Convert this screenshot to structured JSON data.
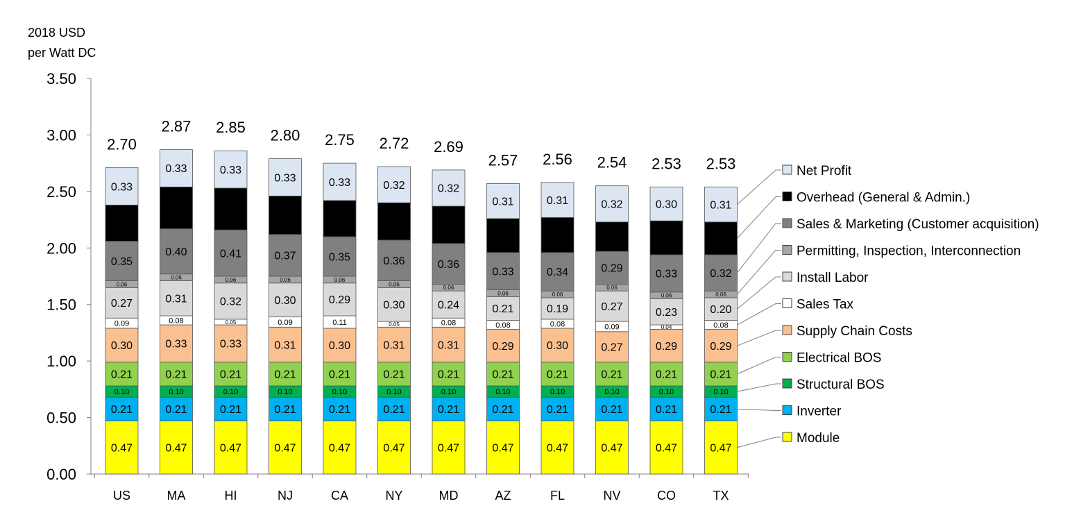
{
  "chart_data": {
    "type": "bar",
    "stacked": true,
    "ylabel_lines": [
      "2018 USD",
      "per Watt DC"
    ],
    "yticks": [
      "0.00",
      "0.50",
      "1.00",
      "1.50",
      "2.00",
      "2.50",
      "3.00",
      "3.50"
    ],
    "ylim": [
      0,
      3.5
    ],
    "grid": false,
    "legend_position": "right",
    "categories": [
      "US",
      "MA",
      "HI",
      "NJ",
      "CA",
      "NY",
      "MD",
      "AZ",
      "FL",
      "NV",
      "CO",
      "TX"
    ],
    "totals": [
      "2.70",
      "2.87",
      "2.85",
      "2.80",
      "2.75",
      "2.72",
      "2.69",
      "2.57",
      "2.56",
      "2.54",
      "2.53",
      "2.53"
    ],
    "series": [
      {
        "name": "Module",
        "color": "#ffff00",
        "label_color": "#000000",
        "values": [
          0.47,
          0.47,
          0.47,
          0.47,
          0.47,
          0.47,
          0.47,
          0.47,
          0.47,
          0.47,
          0.47,
          0.47
        ],
        "labels": [
          "0.47",
          "0.47",
          "0.47",
          "0.47",
          "0.47",
          "0.47",
          "0.47",
          "0.47",
          "0.47",
          "0.47",
          "0.47",
          "0.47"
        ]
      },
      {
        "name": "Inverter",
        "color": "#00b0f0",
        "label_color": "#000000",
        "values": [
          0.21,
          0.21,
          0.21,
          0.21,
          0.21,
          0.21,
          0.21,
          0.21,
          0.21,
          0.21,
          0.21,
          0.21
        ],
        "labels": [
          "0.21",
          "0.21",
          "0.21",
          "0.21",
          "0.21",
          "0.21",
          "0.21",
          "0.21",
          "0.21",
          "0.21",
          "0.21",
          "0.21"
        ]
      },
      {
        "name": "Structural BOS",
        "color": "#00b050",
        "label_color": "#000000",
        "values": [
          0.1,
          0.1,
          0.1,
          0.1,
          0.1,
          0.1,
          0.1,
          0.1,
          0.1,
          0.1,
          0.1,
          0.1
        ],
        "labels": [
          "0.10",
          "0.10",
          "0.10",
          "0.10",
          "0.10",
          "0.10",
          "0.10",
          "0.10",
          "0.10",
          "0.10",
          "0.10",
          "0.10"
        ]
      },
      {
        "name": "Electrical BOS",
        "color": "#92d050",
        "label_color": "#000000",
        "values": [
          0.21,
          0.21,
          0.21,
          0.21,
          0.21,
          0.21,
          0.21,
          0.21,
          0.21,
          0.21,
          0.21,
          0.21
        ],
        "labels": [
          "0.21",
          "0.21",
          "0.21",
          "0.21",
          "0.21",
          "0.21",
          "0.21",
          "0.21",
          "0.21",
          "0.21",
          "0.21",
          "0.21"
        ]
      },
      {
        "name": "Supply Chain Costs",
        "color": "#fac090",
        "label_color": "#000000",
        "values": [
          0.3,
          0.33,
          0.33,
          0.31,
          0.3,
          0.31,
          0.31,
          0.29,
          0.3,
          0.27,
          0.29,
          0.29
        ],
        "labels": [
          "0.30",
          "0.33",
          "0.33",
          "0.31",
          "0.30",
          "0.31",
          "0.31",
          "0.29",
          "0.30",
          "0.27",
          "0.29",
          "0.29"
        ]
      },
      {
        "name": "Sales Tax",
        "color": "#ffffff",
        "label_color": "#000000",
        "values": [
          0.09,
          0.08,
          0.05,
          0.09,
          0.11,
          0.05,
          0.08,
          0.08,
          0.08,
          0.09,
          0.04,
          0.08
        ],
        "labels": [
          "0.09",
          "0.08",
          "0.05",
          "0.09",
          "0.11",
          "0.05",
          "0.08",
          "0.08",
          "0.08",
          "0.09",
          "0.04",
          "0.08"
        ]
      },
      {
        "name": "Install Labor",
        "color": "#d9d9d9",
        "label_color": "#000000",
        "values": [
          0.27,
          0.31,
          0.32,
          0.3,
          0.29,
          0.3,
          0.24,
          0.21,
          0.19,
          0.27,
          0.23,
          0.2
        ],
        "labels": [
          "0.27",
          "0.31",
          "0.32",
          "0.30",
          "0.29",
          "0.30",
          "0.24",
          "0.21",
          "0.19",
          "0.27",
          "0.23",
          "0.20"
        ]
      },
      {
        "name": "Permitting, Inspection, Interconnection",
        "color": "#a6a6a6",
        "label_color": "#ffffff",
        "values": [
          0.06,
          0.06,
          0.06,
          0.06,
          0.06,
          0.06,
          0.06,
          0.06,
          0.06,
          0.06,
          0.06,
          0.06
        ],
        "labels": [
          "0.06",
          "0.06",
          "0.06",
          "0.06",
          "0.06",
          "0.06",
          "0.06",
          "0.06",
          "0.06",
          "0.06",
          "0.06",
          "0.06"
        ]
      },
      {
        "name": "Sales & Marketing (Customer acquisition)",
        "color": "#808080",
        "label_color": "#ffffff",
        "values": [
          0.35,
          0.4,
          0.41,
          0.37,
          0.35,
          0.36,
          0.36,
          0.33,
          0.34,
          0.29,
          0.33,
          0.32
        ],
        "labels": [
          "0.35",
          "0.40",
          "0.41",
          "0.37",
          "0.35",
          "0.36",
          "0.36",
          "0.33",
          "0.34",
          "0.29",
          "0.33",
          "0.32"
        ]
      },
      {
        "name": "Overhead (General & Admin.)",
        "color": "#000000",
        "label_color": "#ffffff",
        "values": [
          0.32,
          0.37,
          0.37,
          0.34,
          0.32,
          0.33,
          0.33,
          0.3,
          0.31,
          0.26,
          0.3,
          0.29
        ],
        "labels": [
          "0.32",
          "0.37",
          "0.37",
          "0.34",
          "0.32",
          "0.33",
          "0.33",
          "0.30",
          "0.31",
          "0.26",
          "0.30",
          "0.29"
        ]
      },
      {
        "name": "Net Profit",
        "color": "#dce6f2",
        "label_color": "#000000",
        "values": [
          0.33,
          0.33,
          0.33,
          0.33,
          0.33,
          0.32,
          0.32,
          0.31,
          0.31,
          0.32,
          0.3,
          0.31
        ],
        "labels": [
          "0.33",
          "0.33",
          "0.33",
          "0.33",
          "0.33",
          "0.32",
          "0.32",
          "0.31",
          "0.31",
          "0.32",
          "0.30",
          "0.31"
        ]
      }
    ]
  }
}
